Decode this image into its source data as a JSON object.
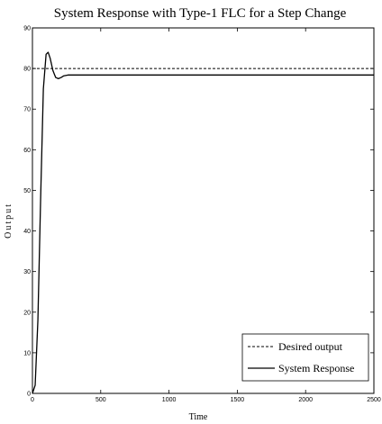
{
  "chart_data": {
    "type": "line",
    "title": "System Response with Type-1 FLC for a Step Change",
    "xlabel": "Time",
    "ylabel": "Output",
    "xlim": [
      0,
      2500
    ],
    "ylim": [
      0,
      90
    ],
    "xticks": [
      "0",
      "500",
      "1000",
      "1500",
      "2000",
      "2500"
    ],
    "yticks": [
      "0",
      "10",
      "20",
      "30",
      "40",
      "50",
      "60",
      "70",
      "80",
      "90"
    ],
    "grid": false,
    "legend_position": "bottom-right",
    "series": [
      {
        "name": "Desired output",
        "style": "dashed",
        "x": [
          0,
          2500
        ],
        "y": [
          80,
          80
        ]
      },
      {
        "name": "System Response",
        "style": "solid",
        "x": [
          0,
          20,
          40,
          60,
          80,
          100,
          115,
          130,
          150,
          170,
          190,
          210,
          230,
          260,
          300,
          400,
          600,
          1000,
          1500,
          2000,
          2500
        ],
        "y": [
          0,
          2,
          18,
          48,
          75,
          83.5,
          84,
          82.5,
          79.5,
          77.8,
          77.5,
          77.8,
          78.2,
          78.4,
          78.4,
          78.4,
          78.4,
          78.4,
          78.4,
          78.4,
          78.4
        ]
      }
    ]
  }
}
